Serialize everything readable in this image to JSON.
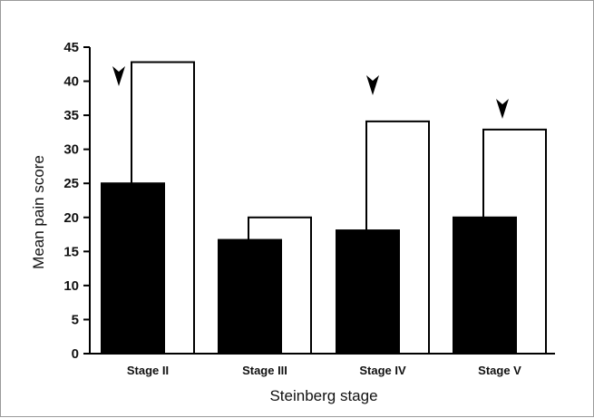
{
  "colors": {
    "series_filled": "#000000",
    "series_open": "#ffffff",
    "axis": "#000000"
  },
  "chart_data": {
    "type": "bar",
    "categories": [
      "Stage II",
      "Stage III",
      "Stage IV",
      "Stage V"
    ],
    "series": [
      {
        "values": [
          25,
          16.7,
          18.1,
          20
        ],
        "fill": "#000000"
      },
      {
        "values": [
          42.8,
          20,
          34.1,
          32.9
        ],
        "fill": "#ffffff"
      }
    ],
    "markers": {
      "icon": "arrowhead-down",
      "categories": [
        "Stage II",
        "Stage IV",
        "Stage V"
      ]
    },
    "xlabel": "Steinberg stage",
    "ylabel": "Mean pain score",
    "ylim": [
      0,
      45
    ],
    "yticks": [
      0,
      5,
      10,
      15,
      20,
      25,
      30,
      35,
      40,
      45
    ],
    "grid": false,
    "legend": "none"
  }
}
